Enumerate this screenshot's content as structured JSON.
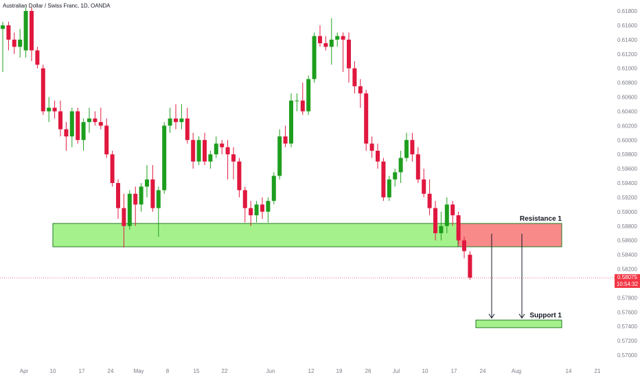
{
  "header": {
    "symbol_title": "Australian Dollar / Swiss Franc, 1D, OANDA"
  },
  "last_price": {
    "value": "0.58075",
    "countdown": "10:54:32",
    "color": "#f23645"
  },
  "colors": {
    "up": "#1e9e1e",
    "down": "#e0173e",
    "zone_green": "#a5f28c",
    "zone_green_border": "#1e7a1e",
    "zone_red": "#f98a8a",
    "axis_text": "#787b86"
  },
  "chart_data": {
    "type": "candlestick",
    "x_tick_labels": [
      "Apr",
      "10",
      "17",
      "24",
      "May",
      "8",
      "15",
      "22",
      "Jun",
      "12",
      "19",
      "26",
      "Jul",
      "10",
      "17",
      "24",
      "Aug",
      "14",
      "21"
    ],
    "y_tick_labels": [
      "0.61800",
      "0.61600",
      "0.61400",
      "0.61200",
      "0.61000",
      "0.60800",
      "0.60600",
      "0.60400",
      "0.60200",
      "0.60000",
      "0.59800",
      "0.59600",
      "0.59400",
      "0.59200",
      "0.59000",
      "0.58800",
      "0.58600",
      "0.58400",
      "0.58200",
      "0.58000",
      "0.57800",
      "0.57600",
      "0.57400",
      "0.57200",
      "0.57000"
    ],
    "ylim": [
      0.5695,
      0.6185
    ],
    "candles": [
      {
        "o": 0.6155,
        "h": 0.6165,
        "l": 0.6095,
        "c": 0.616
      },
      {
        "o": 0.616,
        "h": 0.6165,
        "l": 0.6125,
        "c": 0.614
      },
      {
        "o": 0.614,
        "h": 0.615,
        "l": 0.612,
        "c": 0.613
      },
      {
        "o": 0.613,
        "h": 0.6155,
        "l": 0.6115,
        "c": 0.614
      },
      {
        "o": 0.6125,
        "h": 0.6185,
        "l": 0.6115,
        "c": 0.618
      },
      {
        "o": 0.618,
        "h": 0.6185,
        "l": 0.611,
        "c": 0.6125
      },
      {
        "o": 0.6125,
        "h": 0.613,
        "l": 0.61,
        "c": 0.6105
      },
      {
        "o": 0.61,
        "h": 0.6105,
        "l": 0.6035,
        "c": 0.604
      },
      {
        "o": 0.604,
        "h": 0.606,
        "l": 0.6025,
        "c": 0.6045
      },
      {
        "o": 0.6045,
        "h": 0.6055,
        "l": 0.603,
        "c": 0.604
      },
      {
        "o": 0.604,
        "h": 0.6055,
        "l": 0.6005,
        "c": 0.6015
      },
      {
        "o": 0.6015,
        "h": 0.6025,
        "l": 0.5985,
        "c": 0.6005
      },
      {
        "o": 0.6005,
        "h": 0.6045,
        "l": 0.599,
        "c": 0.604
      },
      {
        "o": 0.604,
        "h": 0.6045,
        "l": 0.5995,
        "c": 0.6
      },
      {
        "o": 0.6,
        "h": 0.603,
        "l": 0.5985,
        "c": 0.6025
      },
      {
        "o": 0.6025,
        "h": 0.6045,
        "l": 0.601,
        "c": 0.603
      },
      {
        "o": 0.603,
        "h": 0.604,
        "l": 0.602,
        "c": 0.6025
      },
      {
        "o": 0.6025,
        "h": 0.6045,
        "l": 0.6015,
        "c": 0.602
      },
      {
        "o": 0.602,
        "h": 0.603,
        "l": 0.5975,
        "c": 0.598
      },
      {
        "o": 0.598,
        "h": 0.5985,
        "l": 0.5935,
        "c": 0.594
      },
      {
        "o": 0.594,
        "h": 0.5945,
        "l": 0.589,
        "c": 0.5905
      },
      {
        "o": 0.5905,
        "h": 0.5925,
        "l": 0.585,
        "c": 0.588
      },
      {
        "o": 0.588,
        "h": 0.593,
        "l": 0.5875,
        "c": 0.5925
      },
      {
        "o": 0.5925,
        "h": 0.5935,
        "l": 0.588,
        "c": 0.591
      },
      {
        "o": 0.591,
        "h": 0.594,
        "l": 0.59,
        "c": 0.5935
      },
      {
        "o": 0.5935,
        "h": 0.5965,
        "l": 0.592,
        "c": 0.5945
      },
      {
        "o": 0.5945,
        "h": 0.5965,
        "l": 0.59,
        "c": 0.5905
      },
      {
        "o": 0.5905,
        "h": 0.5935,
        "l": 0.5865,
        "c": 0.593
      },
      {
        "o": 0.593,
        "h": 0.6025,
        "l": 0.5925,
        "c": 0.602
      },
      {
        "o": 0.602,
        "h": 0.6045,
        "l": 0.601,
        "c": 0.603
      },
      {
        "o": 0.603,
        "h": 0.605,
        "l": 0.6015,
        "c": 0.6025
      },
      {
        "o": 0.6025,
        "h": 0.605,
        "l": 0.6015,
        "c": 0.603
      },
      {
        "o": 0.603,
        "h": 0.6045,
        "l": 0.5995,
        "c": 0.6
      },
      {
        "o": 0.6,
        "h": 0.601,
        "l": 0.596,
        "c": 0.597
      },
      {
        "o": 0.597,
        "h": 0.6005,
        "l": 0.5965,
        "c": 0.6
      },
      {
        "o": 0.6,
        "h": 0.601,
        "l": 0.5965,
        "c": 0.597
      },
      {
        "o": 0.597,
        "h": 0.5985,
        "l": 0.596,
        "c": 0.598
      },
      {
        "o": 0.598,
        "h": 0.6005,
        "l": 0.5975,
        "c": 0.5995
      },
      {
        "o": 0.5995,
        "h": 0.6,
        "l": 0.598,
        "c": 0.599
      },
      {
        "o": 0.599,
        "h": 0.6,
        "l": 0.5945,
        "c": 0.598
      },
      {
        "o": 0.598,
        "h": 0.599,
        "l": 0.5945,
        "c": 0.597
      },
      {
        "o": 0.597,
        "h": 0.5975,
        "l": 0.592,
        "c": 0.593
      },
      {
        "o": 0.593,
        "h": 0.5935,
        "l": 0.5885,
        "c": 0.5905
      },
      {
        "o": 0.5905,
        "h": 0.5915,
        "l": 0.588,
        "c": 0.5895
      },
      {
        "o": 0.5895,
        "h": 0.5915,
        "l": 0.5885,
        "c": 0.591
      },
      {
        "o": 0.591,
        "h": 0.592,
        "l": 0.589,
        "c": 0.59
      },
      {
        "o": 0.59,
        "h": 0.592,
        "l": 0.5885,
        "c": 0.5915
      },
      {
        "o": 0.5915,
        "h": 0.5955,
        "l": 0.591,
        "c": 0.595
      },
      {
        "o": 0.595,
        "h": 0.6015,
        "l": 0.5945,
        "c": 0.6005
      },
      {
        "o": 0.6005,
        "h": 0.602,
        "l": 0.599,
        "c": 0.5995
      },
      {
        "o": 0.5995,
        "h": 0.6065,
        "l": 0.599,
        "c": 0.6055
      },
      {
        "o": 0.6055,
        "h": 0.6065,
        "l": 0.604,
        "c": 0.6055
      },
      {
        "o": 0.6055,
        "h": 0.608,
        "l": 0.6035,
        "c": 0.604
      },
      {
        "o": 0.604,
        "h": 0.609,
        "l": 0.6035,
        "c": 0.6085
      },
      {
        "o": 0.6085,
        "h": 0.615,
        "l": 0.608,
        "c": 0.6145
      },
      {
        "o": 0.6145,
        "h": 0.616,
        "l": 0.613,
        "c": 0.6135
      },
      {
        "o": 0.6135,
        "h": 0.6145,
        "l": 0.6125,
        "c": 0.613
      },
      {
        "o": 0.613,
        "h": 0.617,
        "l": 0.6105,
        "c": 0.614
      },
      {
        "o": 0.614,
        "h": 0.615,
        "l": 0.613,
        "c": 0.6145
      },
      {
        "o": 0.6145,
        "h": 0.615,
        "l": 0.6095,
        "c": 0.614
      },
      {
        "o": 0.614,
        "h": 0.615,
        "l": 0.608,
        "c": 0.61
      },
      {
        "o": 0.61,
        "h": 0.611,
        "l": 0.6065,
        "c": 0.6075
      },
      {
        "o": 0.6075,
        "h": 0.6085,
        "l": 0.6045,
        "c": 0.6065
      },
      {
        "o": 0.6065,
        "h": 0.607,
        "l": 0.5985,
        "c": 0.5995
      },
      {
        "o": 0.5995,
        "h": 0.6005,
        "l": 0.5975,
        "c": 0.5985
      },
      {
        "o": 0.5985,
        "h": 0.5995,
        "l": 0.596,
        "c": 0.597
      },
      {
        "o": 0.597,
        "h": 0.5975,
        "l": 0.5915,
        "c": 0.592
      },
      {
        "o": 0.592,
        "h": 0.595,
        "l": 0.5915,
        "c": 0.5945
      },
      {
        "o": 0.5945,
        "h": 0.596,
        "l": 0.5935,
        "c": 0.5955
      },
      {
        "o": 0.5955,
        "h": 0.5985,
        "l": 0.594,
        "c": 0.5975
      },
      {
        "o": 0.5975,
        "h": 0.601,
        "l": 0.597,
        "c": 0.6
      },
      {
        "o": 0.6,
        "h": 0.601,
        "l": 0.597,
        "c": 0.598
      },
      {
        "o": 0.598,
        "h": 0.599,
        "l": 0.594,
        "c": 0.5945
      },
      {
        "o": 0.5945,
        "h": 0.596,
        "l": 0.592,
        "c": 0.5925
      },
      {
        "o": 0.5925,
        "h": 0.5945,
        "l": 0.5895,
        "c": 0.5905
      },
      {
        "o": 0.5905,
        "h": 0.5915,
        "l": 0.586,
        "c": 0.587
      },
      {
        "o": 0.587,
        "h": 0.59,
        "l": 0.586,
        "c": 0.588
      },
      {
        "o": 0.588,
        "h": 0.592,
        "l": 0.587,
        "c": 0.591
      },
      {
        "o": 0.591,
        "h": 0.5915,
        "l": 0.588,
        "c": 0.5895
      },
      {
        "o": 0.5895,
        "h": 0.59,
        "l": 0.5855,
        "c": 0.586
      },
      {
        "o": 0.586,
        "h": 0.5865,
        "l": 0.5835,
        "c": 0.5845
      },
      {
        "o": 0.584,
        "h": 0.5845,
        "l": 0.5805,
        "c": 0.5808
      }
    ],
    "annotations": [
      {
        "label": "Resistance 1",
        "green_zone": [
          0.5852,
          0.5885
        ],
        "red_zone": [
          0.5852,
          0.5885
        ]
      },
      {
        "label": "Support 1",
        "zone": [
          0.574,
          0.575
        ]
      }
    ]
  }
}
